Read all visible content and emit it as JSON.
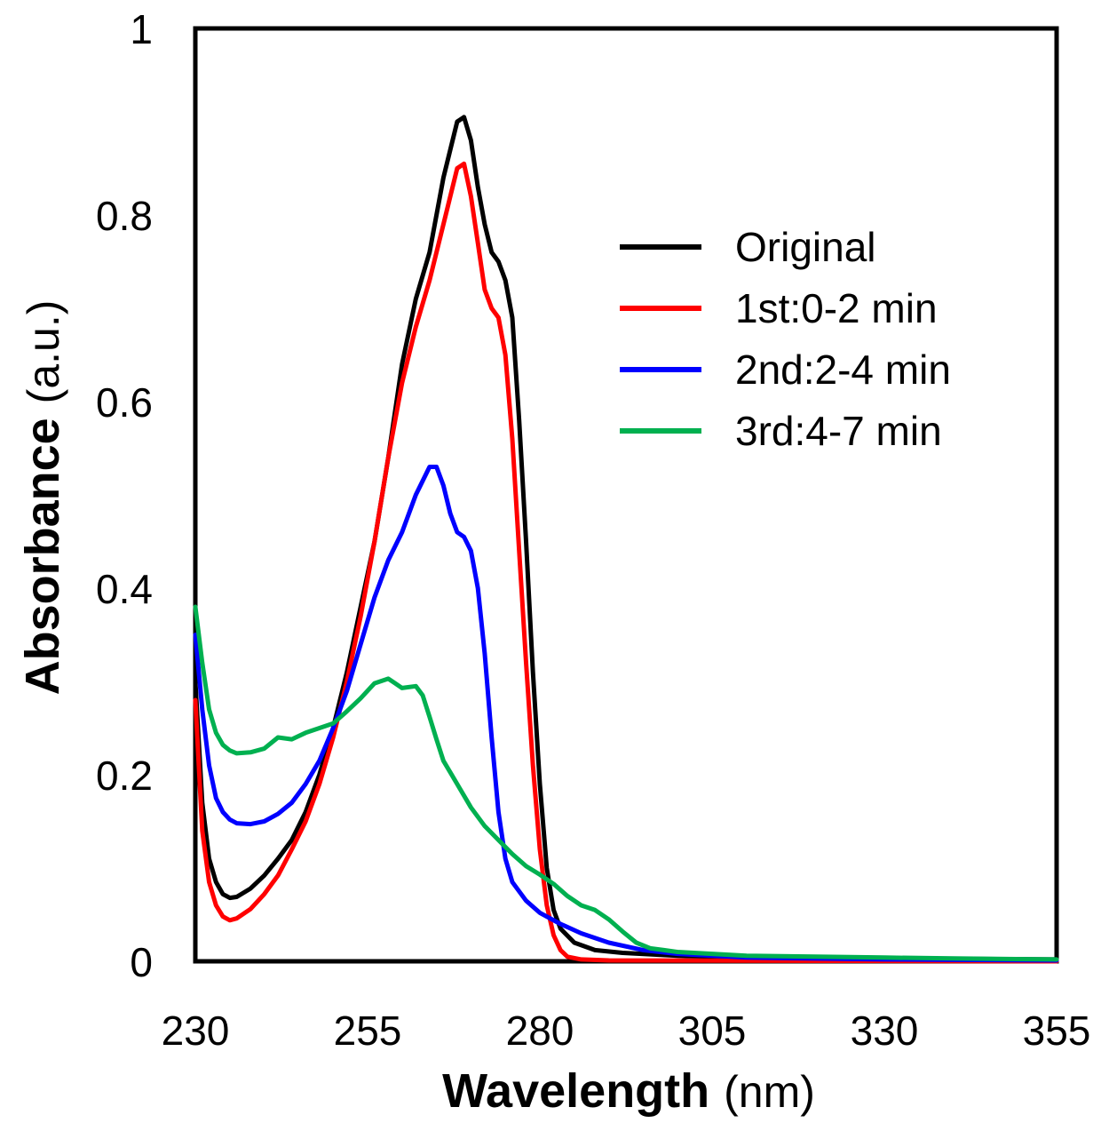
{
  "chart_data": {
    "type": "line",
    "title": "",
    "xlabel": "Wavelength",
    "xlabel_unit": "(nm)",
    "ylabel": "Absorbance",
    "ylabel_unit": "(a.u.)",
    "xlim": [
      230,
      355
    ],
    "ylim": [
      0,
      1
    ],
    "xticks": [
      "230",
      "255",
      "280",
      "305",
      "330",
      "355"
    ],
    "yticks": [
      "0",
      "0.2",
      "0.4",
      "0.6",
      "0.8",
      "1"
    ],
    "grid": false,
    "legend_position": "top-right",
    "series": [
      {
        "name": "Original",
        "color": "#000000",
        "points": [
          [
            230,
            0.3
          ],
          [
            231,
            0.17
          ],
          [
            232,
            0.11
          ],
          [
            233,
            0.085
          ],
          [
            234,
            0.072
          ],
          [
            235,
            0.068
          ],
          [
            236,
            0.069
          ],
          [
            238,
            0.078
          ],
          [
            240,
            0.092
          ],
          [
            242,
            0.11
          ],
          [
            244,
            0.13
          ],
          [
            246,
            0.16
          ],
          [
            248,
            0.2
          ],
          [
            250,
            0.25
          ],
          [
            252,
            0.31
          ],
          [
            254,
            0.38
          ],
          [
            256,
            0.45
          ],
          [
            258,
            0.54
          ],
          [
            260,
            0.64
          ],
          [
            262,
            0.71
          ],
          [
            264,
            0.76
          ],
          [
            266,
            0.84
          ],
          [
            268,
            0.9
          ],
          [
            269,
            0.905
          ],
          [
            270,
            0.88
          ],
          [
            271,
            0.83
          ],
          [
            272,
            0.79
          ],
          [
            273,
            0.76
          ],
          [
            274,
            0.75
          ],
          [
            275,
            0.73
          ],
          [
            276,
            0.69
          ],
          [
            277,
            0.58
          ],
          [
            278,
            0.45
          ],
          [
            279,
            0.31
          ],
          [
            280,
            0.19
          ],
          [
            281,
            0.1
          ],
          [
            282,
            0.055
          ],
          [
            283,
            0.035
          ],
          [
            285,
            0.02
          ],
          [
            288,
            0.012
          ],
          [
            292,
            0.009
          ],
          [
            300,
            0.006
          ],
          [
            310,
            0.004
          ],
          [
            330,
            0.003
          ],
          [
            355,
            0.002
          ]
        ]
      },
      {
        "name": "1st:0-2 min",
        "color": "#ff0000",
        "points": [
          [
            230,
            0.28
          ],
          [
            231,
            0.14
          ],
          [
            232,
            0.085
          ],
          [
            233,
            0.06
          ],
          [
            234,
            0.048
          ],
          [
            235,
            0.044
          ],
          [
            236,
            0.046
          ],
          [
            238,
            0.056
          ],
          [
            240,
            0.072
          ],
          [
            242,
            0.092
          ],
          [
            244,
            0.12
          ],
          [
            246,
            0.15
          ],
          [
            248,
            0.19
          ],
          [
            250,
            0.24
          ],
          [
            252,
            0.3
          ],
          [
            254,
            0.37
          ],
          [
            256,
            0.45
          ],
          [
            258,
            0.54
          ],
          [
            260,
            0.62
          ],
          [
            262,
            0.68
          ],
          [
            264,
            0.73
          ],
          [
            266,
            0.79
          ],
          [
            268,
            0.85
          ],
          [
            269,
            0.855
          ],
          [
            270,
            0.82
          ],
          [
            271,
            0.77
          ],
          [
            272,
            0.72
          ],
          [
            273,
            0.7
          ],
          [
            274,
            0.69
          ],
          [
            275,
            0.65
          ],
          [
            276,
            0.56
          ],
          [
            277,
            0.44
          ],
          [
            278,
            0.32
          ],
          [
            279,
            0.21
          ],
          [
            280,
            0.12
          ],
          [
            281,
            0.06
          ],
          [
            282,
            0.028
          ],
          [
            283,
            0.012
          ],
          [
            284,
            0.005
          ],
          [
            286,
            0.002
          ],
          [
            290,
            0.001
          ],
          [
            355,
            0.0
          ]
        ]
      },
      {
        "name": "2nd:2-4 min",
        "color": "#0000ff",
        "points": [
          [
            230,
            0.35
          ],
          [
            231,
            0.27
          ],
          [
            232,
            0.21
          ],
          [
            233,
            0.175
          ],
          [
            234,
            0.16
          ],
          [
            235,
            0.152
          ],
          [
            236,
            0.148
          ],
          [
            238,
            0.147
          ],
          [
            240,
            0.15
          ],
          [
            242,
            0.158
          ],
          [
            244,
            0.17
          ],
          [
            246,
            0.19
          ],
          [
            248,
            0.215
          ],
          [
            250,
            0.25
          ],
          [
            252,
            0.29
          ],
          [
            254,
            0.34
          ],
          [
            256,
            0.39
          ],
          [
            258,
            0.43
          ],
          [
            260,
            0.46
          ],
          [
            262,
            0.5
          ],
          [
            264,
            0.53
          ],
          [
            265,
            0.53
          ],
          [
            266,
            0.51
          ],
          [
            267,
            0.48
          ],
          [
            268,
            0.46
          ],
          [
            269,
            0.455
          ],
          [
            270,
            0.44
          ],
          [
            271,
            0.4
          ],
          [
            272,
            0.33
          ],
          [
            273,
            0.24
          ],
          [
            274,
            0.16
          ],
          [
            275,
            0.11
          ],
          [
            276,
            0.085
          ],
          [
            278,
            0.065
          ],
          [
            280,
            0.052
          ],
          [
            283,
            0.04
          ],
          [
            286,
            0.03
          ],
          [
            290,
            0.02
          ],
          [
            295,
            0.012
          ],
          [
            300,
            0.008
          ],
          [
            310,
            0.004
          ],
          [
            330,
            0.002
          ],
          [
            355,
            0.001
          ]
        ]
      },
      {
        "name": "3rd:4-7 min",
        "color": "#00b050",
        "points": [
          [
            230,
            0.38
          ],
          [
            231,
            0.32
          ],
          [
            232,
            0.27
          ],
          [
            233,
            0.245
          ],
          [
            234,
            0.232
          ],
          [
            235,
            0.226
          ],
          [
            236,
            0.223
          ],
          [
            238,
            0.224
          ],
          [
            240,
            0.228
          ],
          [
            242,
            0.24
          ],
          [
            244,
            0.238
          ],
          [
            246,
            0.245
          ],
          [
            248,
            0.25
          ],
          [
            250,
            0.255
          ],
          [
            252,
            0.268
          ],
          [
            254,
            0.282
          ],
          [
            256,
            0.298
          ],
          [
            258,
            0.303
          ],
          [
            259,
            0.298
          ],
          [
            260,
            0.293
          ],
          [
            262,
            0.295
          ],
          [
            263,
            0.285
          ],
          [
            264,
            0.262
          ],
          [
            265,
            0.238
          ],
          [
            266,
            0.215
          ],
          [
            268,
            0.19
          ],
          [
            270,
            0.165
          ],
          [
            272,
            0.145
          ],
          [
            274,
            0.13
          ],
          [
            276,
            0.115
          ],
          [
            278,
            0.102
          ],
          [
            280,
            0.093
          ],
          [
            282,
            0.083
          ],
          [
            284,
            0.07
          ],
          [
            286,
            0.06
          ],
          [
            288,
            0.055
          ],
          [
            290,
            0.045
          ],
          [
            292,
            0.032
          ],
          [
            294,
            0.02
          ],
          [
            296,
            0.014
          ],
          [
            298,
            0.012
          ],
          [
            300,
            0.01
          ],
          [
            305,
            0.008
          ],
          [
            310,
            0.006
          ],
          [
            320,
            0.005
          ],
          [
            330,
            0.004
          ],
          [
            340,
            0.003
          ],
          [
            355,
            0.002
          ]
        ]
      }
    ]
  }
}
